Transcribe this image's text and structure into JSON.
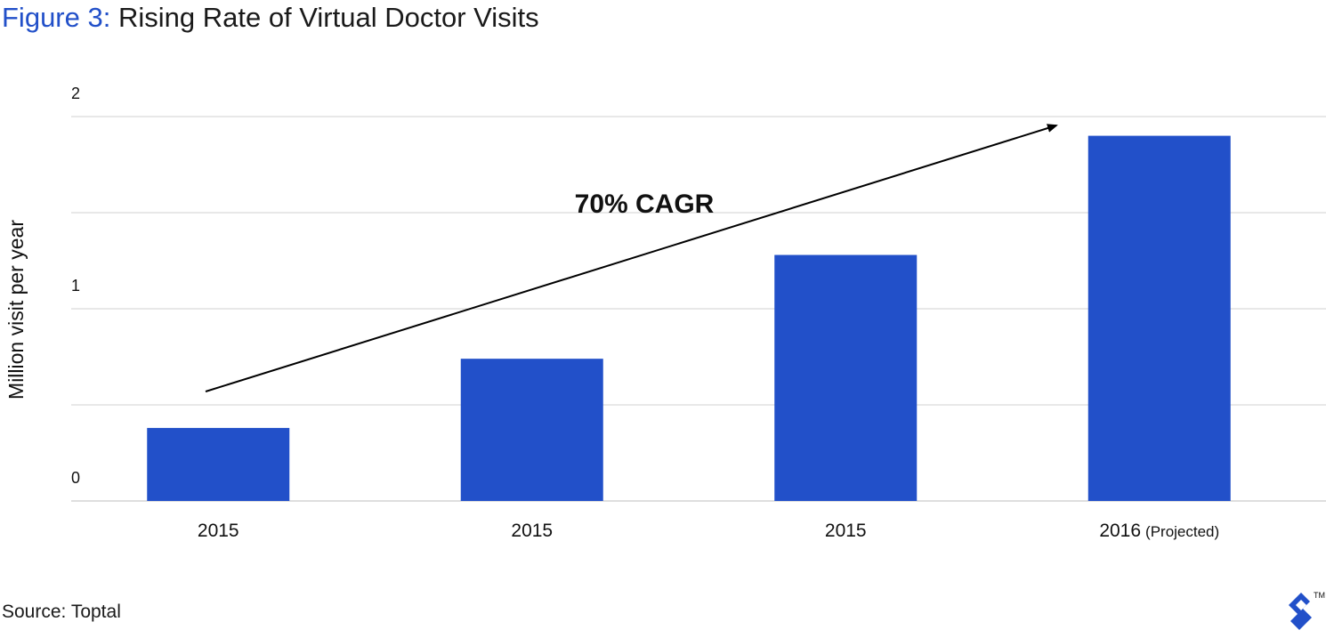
{
  "figure": {
    "prefix": "Figure 3:",
    "title": "Rising Rate of Virtual Doctor Visits"
  },
  "source": "Source: Toptal",
  "colors": {
    "accent": "#2250c9",
    "bar": "#2250c9",
    "grid": "#d0d0d0"
  },
  "logo": {
    "icon": "toptal-logo-icon",
    "trademark": "TM"
  },
  "chart_data": {
    "type": "bar",
    "categories": [
      {
        "main": "2015",
        "note": ""
      },
      {
        "main": "2015",
        "note": ""
      },
      {
        "main": "2015",
        "note": ""
      },
      {
        "main": "2016",
        "note": "(Projected)"
      }
    ],
    "values": [
      0.38,
      0.74,
      1.28,
      1.9
    ],
    "ylabel": "Million visit per year",
    "ylim": [
      0,
      2
    ],
    "yticks": [
      0,
      1,
      2
    ],
    "grid": true,
    "annotation": {
      "text": "70% CAGR",
      "arrow": "rising trend arrow across bars"
    }
  }
}
